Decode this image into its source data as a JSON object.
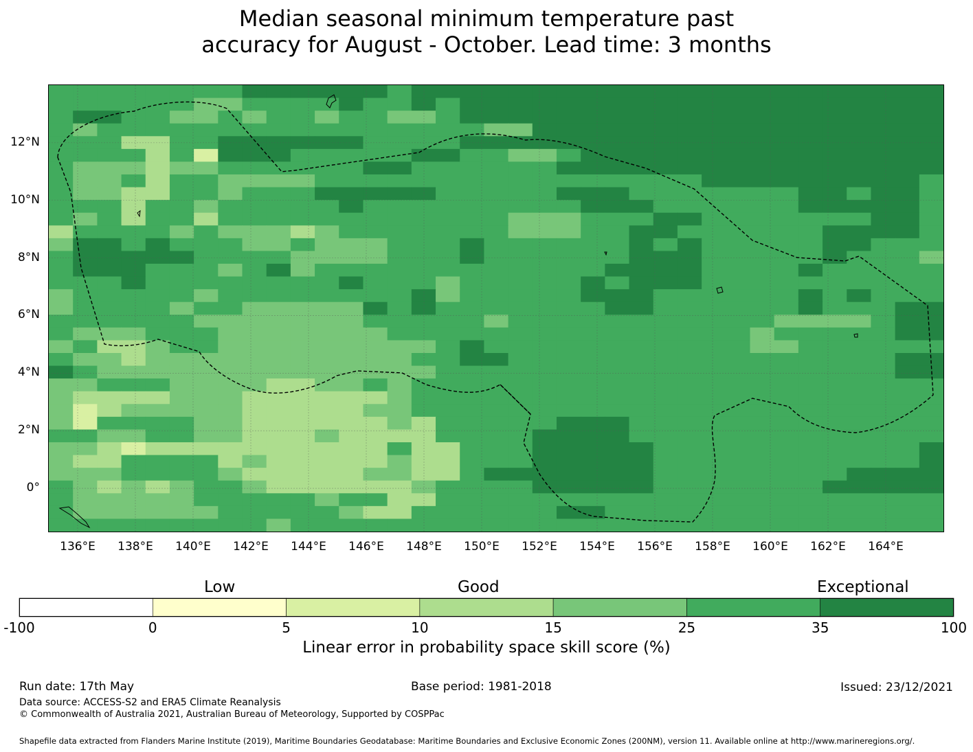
{
  "title": {
    "line1": "Median seasonal minimum temperature past",
    "line2": "accuracy for August - October. Lead time: 3 months"
  },
  "map": {
    "lon_range": [
      135,
      166
    ],
    "lat_range": [
      -1.5,
      14
    ],
    "lon_labels": [
      "136°E",
      "138°E",
      "140°E",
      "142°E",
      "144°E",
      "146°E",
      "148°E",
      "150°E",
      "152°E",
      "154°E",
      "156°E",
      "158°E",
      "160°E",
      "162°E",
      "164°E"
    ],
    "lat_labels": [
      "12°N",
      "10°N",
      "8°N",
      "6°N",
      "4°N",
      "2°N",
      "0°"
    ],
    "palette": [
      "#ffffff",
      "#ffffcc",
      "#d9f0a3",
      "#addd8e",
      "#78c679",
      "#41ab5d",
      "#238443"
    ],
    "grid_rows": [
      "5555555566666656666666666666666666666",
      "5555554455556556566666666666666666666",
      "5665544545545544566666666666666666666",
      "5455555555555555554466666666666666666",
      "5553355666666555566666666666666666666",
      "5555352666555556655445666666666666666",
      "5444344555555665555556666666666666666",
      "5445355444455555555555555556666666665",
      "5443355455566666555556665555555665665",
      "5553554555556555555555666555555666665",
      "5453553555555555555444555665555555665",
      "3555545444345555555444556655555566665",
      "4665655544544455565555556565555566555",
      "5666665555444455565555556665555565554",
      "5666555456455555555555566665555655555",
      "5556555555556555455555656665555555555",
      "4555554555555556455555666555555656555",
      "4555545544444656555555566555555655566",
      "5555554444444555554555555555554444566",
      "5444555444444455555555555555545555566",
      "4533455444444444565555555555544555555",
      "5443444444444445566555555555555555566",
      "6544444444444444555555555555555555566",
      "4455544443344545555555555555555555555",
      "4333344433333345555555555555555555555",
      "4234444433333445555555555555555555555",
      "4255554433333343555556665555555555555",
      "5544554433343333555566665555555555555",
      "4432333333333353355566666555555555556",
      "4335555343333343355566666555555555556",
      "4445555433333443356666666555555556666",
      "5434345543333334555566666555555566666",
      "5444445555545533555555555555555555555",
      "5444444555554335555556655555555555555",
      "5555555554555555555555555555555555555"
    ]
  },
  "colorbar": {
    "category_labels": [
      "Low",
      "Good",
      "Exceptional"
    ],
    "tick_labels": [
      "-100",
      "0",
      "5",
      "10",
      "15",
      "25",
      "35",
      "100"
    ],
    "title": "Linear error in probability space skill score (%)"
  },
  "footer": {
    "run_date": "Run date: 17th May",
    "base_period": "Base period: 1981-2018",
    "issued": "Issued: 23/12/2021",
    "data_source": "Data source: ACCESS-S2 and ERA5 Climate Reanalysis",
    "copyright": "© Commonwealth of Australia 2021, Australian Bureau of Meteorology, Supported by COSPPac",
    "shapefile": "Shapefile data extracted from Flanders Marine Institute (2019), Maritime Boundaries Geodatabase: Maritime Boundaries and Exclusive Economic Zones (200NM), version 11. Available online at http://www.marineregions.org/."
  }
}
